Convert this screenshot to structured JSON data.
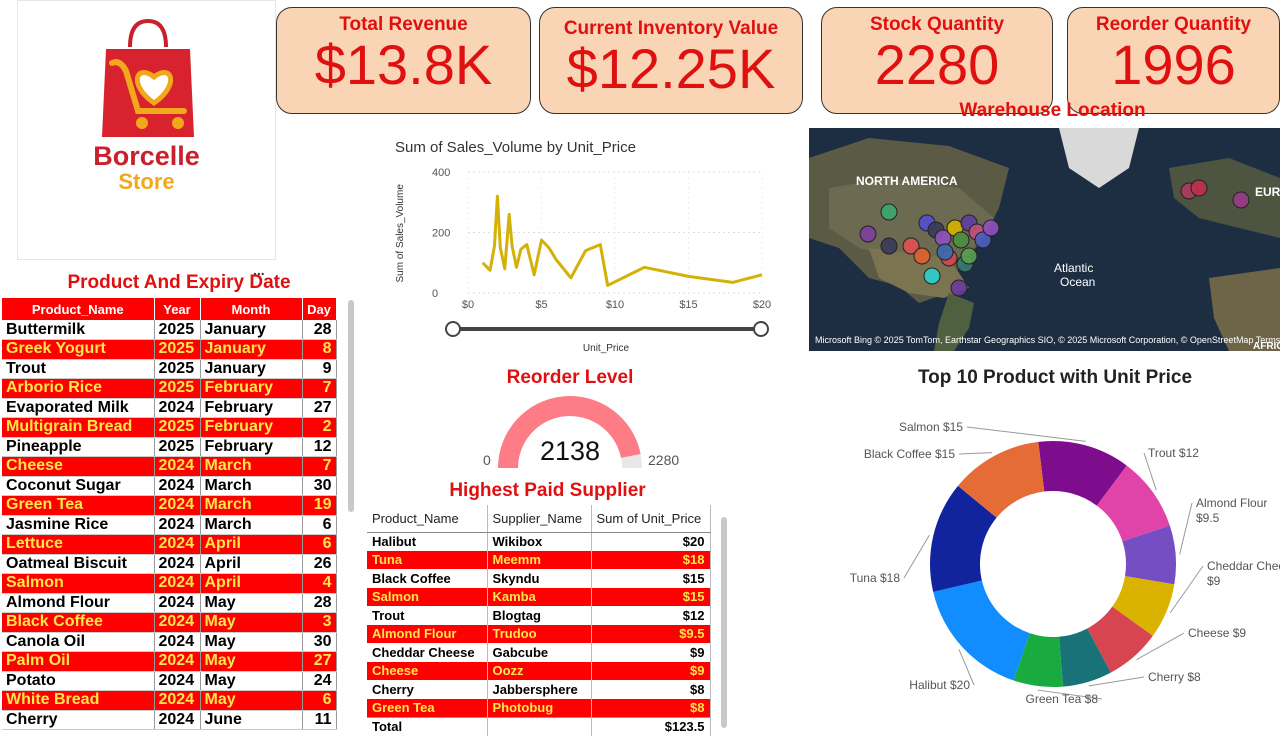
{
  "brand": {
    "name_line1": "Borcelle",
    "name_line2": "Store",
    "colors": {
      "red": "#c8202c",
      "orange": "#f2a81d"
    }
  },
  "kpis": [
    {
      "label": "Total Revenue",
      "value": "$13.8K"
    },
    {
      "label": "Current Inventory Value",
      "value": "$12.25K"
    },
    {
      "label": "Stock Quantity",
      "value": "2280"
    },
    {
      "label": "Reorder Quantity",
      "value": "1996"
    }
  ],
  "expiry": {
    "title": "Product And Expiry Date",
    "columns": [
      "Product_Name",
      "Year",
      "Month",
      "Day"
    ],
    "rows": [
      {
        "product": "Buttermilk",
        "year": "2025",
        "month": "January",
        "day": "28",
        "highlight": false
      },
      {
        "product": "Greek Yogurt",
        "year": "2025",
        "month": "January",
        "day": "8",
        "highlight": true
      },
      {
        "product": "Trout",
        "year": "2025",
        "month": "January",
        "day": "9",
        "highlight": false
      },
      {
        "product": "Arborio Rice",
        "year": "2025",
        "month": "February",
        "day": "7",
        "highlight": true
      },
      {
        "product": "Evaporated Milk",
        "year": "2024",
        "month": "February",
        "day": "27",
        "highlight": false
      },
      {
        "product": "Multigrain Bread",
        "year": "2025",
        "month": "February",
        "day": "2",
        "highlight": true
      },
      {
        "product": "Pineapple",
        "year": "2025",
        "month": "February",
        "day": "12",
        "highlight": false
      },
      {
        "product": "Cheese",
        "year": "2024",
        "month": "March",
        "day": "7",
        "highlight": true
      },
      {
        "product": "Coconut Sugar",
        "year": "2024",
        "month": "March",
        "day": "30",
        "highlight": false
      },
      {
        "product": "Green Tea",
        "year": "2024",
        "month": "March",
        "day": "19",
        "highlight": true
      },
      {
        "product": "Jasmine Rice",
        "year": "2024",
        "month": "March",
        "day": "6",
        "highlight": false
      },
      {
        "product": "Lettuce",
        "year": "2024",
        "month": "April",
        "day": "6",
        "highlight": true
      },
      {
        "product": "Oatmeal Biscuit",
        "year": "2024",
        "month": "April",
        "day": "26",
        "highlight": false
      },
      {
        "product": "Salmon",
        "year": "2024",
        "month": "April",
        "day": "4",
        "highlight": true
      },
      {
        "product": "Almond Flour",
        "year": "2024",
        "month": "May",
        "day": "28",
        "highlight": false
      },
      {
        "product": "Black Coffee",
        "year": "2024",
        "month": "May",
        "day": "3",
        "highlight": true
      },
      {
        "product": "Canola Oil",
        "year": "2024",
        "month": "May",
        "day": "30",
        "highlight": false
      },
      {
        "product": "Palm Oil",
        "year": "2024",
        "month": "May",
        "day": "27",
        "highlight": true
      },
      {
        "product": "Potato",
        "year": "2024",
        "month": "May",
        "day": "24",
        "highlight": false
      },
      {
        "product": "White Bread",
        "year": "2024",
        "month": "May",
        "day": "6",
        "highlight": true
      },
      {
        "product": "Cherry",
        "year": "2024",
        "month": "June",
        "day": "11",
        "highlight": false
      }
    ]
  },
  "line_chart": {
    "title": "Sum of Sales_Volume by Unit_Price",
    "xlabel": "Unit_Price",
    "ylabel": "Sum of Sales_Volume",
    "x_ticks": [
      "$0",
      "$5",
      "$10",
      "$15",
      "$20"
    ],
    "y_ticks": [
      "400",
      "200",
      "0"
    ]
  },
  "chart_data": [
    {
      "type": "line",
      "title": "Sum of Sales_Volume by Unit_Price",
      "xlabel": "Unit_Price",
      "ylabel": "Sum of Sales_Volume",
      "xlim": [
        0,
        20
      ],
      "ylim": [
        0,
        400
      ],
      "grid": true,
      "series": [
        {
          "color": "#d4b106",
          "x": [
            1,
            1.5,
            1.8,
            2,
            2.2,
            2.5,
            2.8,
            3,
            3.3,
            3.6,
            4,
            4.5,
            5,
            5.5,
            6,
            7,
            8,
            9,
            9.5,
            12,
            15,
            18,
            20
          ],
          "y": [
            100,
            75,
            155,
            320,
            150,
            80,
            260,
            155,
            85,
            145,
            160,
            60,
            175,
            150,
            110,
            50,
            140,
            160,
            25,
            85,
            55,
            35,
            60
          ]
        }
      ]
    },
    {
      "type": "pie",
      "title": "Top 10 Product with Unit Price",
      "categories": [
        "Salmon",
        "Trout",
        "Almond Flour",
        "Cheddar Cheese",
        "Cheese",
        "Cherry",
        "Green Tea",
        "Halibut",
        "Tuna",
        "Black Coffee"
      ],
      "values": [
        15,
        12,
        9.5,
        9,
        9,
        8,
        8,
        20,
        18,
        15
      ],
      "labels": [
        "Salmon $15",
        "Trout $12",
        "Almond Flour $9.5",
        "Cheddar Chee $9",
        "Cheese $9",
        "Cherry $8",
        "Green Tea $8",
        "Halibut $20",
        "Tuna $18",
        "Black Coffee $15"
      ],
      "colors": [
        "#7e0d8d",
        "#e044a8",
        "#744ec2",
        "#d9b300",
        "#d64550",
        "#197278",
        "#1aab40",
        "#118dff",
        "#12239e",
        "#e66c37"
      ]
    }
  ],
  "reorder": {
    "title": "Reorder Level",
    "value": "2138",
    "min": "0",
    "max": "2280",
    "fraction": 0.9377
  },
  "supplier": {
    "title": "Highest Paid Supplier",
    "columns": [
      "Product_Name",
      "Supplier_Name",
      "Sum of Unit_Price"
    ],
    "rows": [
      {
        "product": "Halibut",
        "supplier": "Wikibox",
        "price": "$20",
        "highlight": false
      },
      {
        "product": "Tuna",
        "supplier": "Meemm",
        "price": "$18",
        "highlight": true
      },
      {
        "product": "Black Coffee",
        "supplier": "Skyndu",
        "price": "$15",
        "highlight": false
      },
      {
        "product": "Salmon",
        "supplier": "Kamba",
        "price": "$15",
        "highlight": true
      },
      {
        "product": "Trout",
        "supplier": "Blogtag",
        "price": "$12",
        "highlight": false
      },
      {
        "product": "Almond Flour",
        "supplier": "Trudoo",
        "price": "$9.5",
        "highlight": true
      },
      {
        "product": "Cheddar Cheese",
        "supplier": "Gabcube",
        "price": "$9",
        "highlight": false
      },
      {
        "product": "Cheese",
        "supplier": "Oozz",
        "price": "$9",
        "highlight": true
      },
      {
        "product": "Cherry",
        "supplier": "Jabbersphere",
        "price": "$8",
        "highlight": false
      },
      {
        "product": "Green Tea",
        "supplier": "Photobug",
        "price": "$8",
        "highlight": true
      }
    ],
    "total_label": "Total",
    "total_value": "$123.5"
  },
  "map": {
    "title": "Warehouse Location",
    "labels": [
      "NORTH AMERICA",
      "Atlantic",
      "Ocean",
      "EURO",
      "AFRIC"
    ],
    "attribution": "© 2025 TomTom, Earthstar Geographics SIO, © 2025 Microsoft Corporation, © OpenStreetMap  Terms",
    "logo_text": "Microsoft Bing"
  },
  "donut_title": "Top 10 Product with Unit Price",
  "more_dots": "..."
}
